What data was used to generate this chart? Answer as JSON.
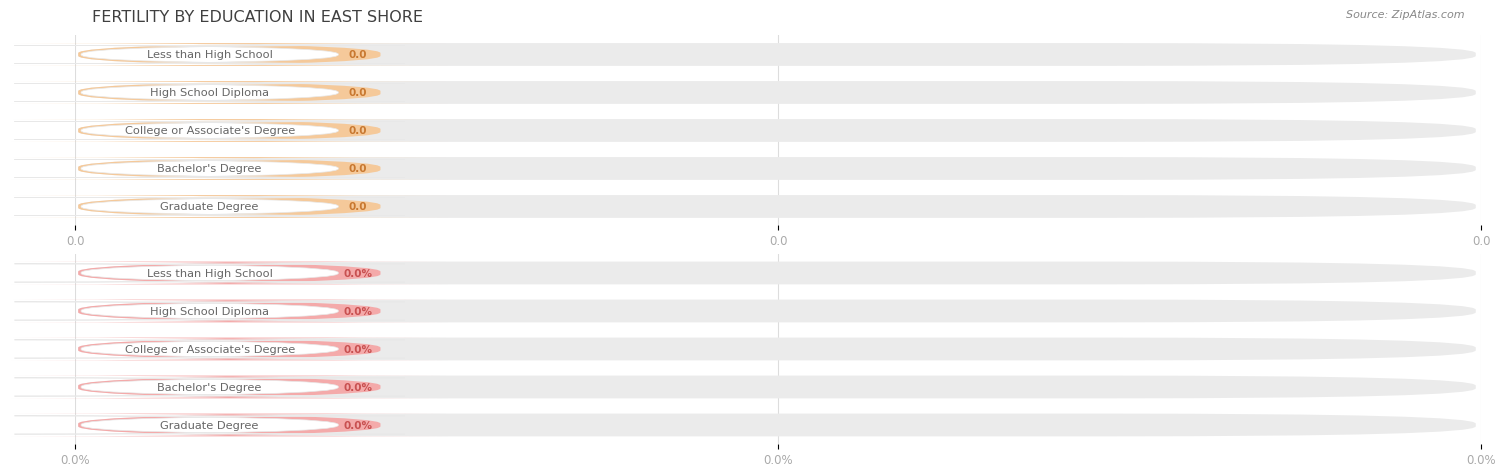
{
  "title": "FERTILITY BY EDUCATION IN EAST SHORE",
  "source": "Source: ZipAtlas.com",
  "categories": [
    "Less than High School",
    "High School Diploma",
    "College or Associate's Degree",
    "Bachelor's Degree",
    "Graduate Degree"
  ],
  "group1_values": [
    0.0,
    0.0,
    0.0,
    0.0,
    0.0
  ],
  "group1_labels": [
    "0.0",
    "0.0",
    "0.0",
    "0.0",
    "0.0"
  ],
  "group1_bar_color": "#F5C99A",
  "group1_bar_bg": "#EBEBEB",
  "group2_values": [
    0.0,
    0.0,
    0.0,
    0.0,
    0.0
  ],
  "group2_labels": [
    "0.0%",
    "0.0%",
    "0.0%",
    "0.0%",
    "0.0%"
  ],
  "group2_bar_color": "#F4AAAA",
  "group2_bar_bg": "#EBEBEB",
  "axis_tick_labels_g1": [
    "0.0",
    "0.0",
    "0.0"
  ],
  "axis_tick_labels_g2": [
    "0.0%",
    "0.0%",
    "0.0%"
  ],
  "bg_color": "#FFFFFF",
  "label_text_color": "#666666",
  "value_text_color_g1": "#C87830",
  "value_text_color_g2": "#C85050",
  "axis_tick_color": "#AAAAAA",
  "grid_color": "#DDDDDD",
  "title_color": "#404040",
  "source_color": "#888888",
  "bar_rounding": 0.3,
  "label_pill_color": "#FFFFFF",
  "label_pill_stroke": "#E0E0E0"
}
